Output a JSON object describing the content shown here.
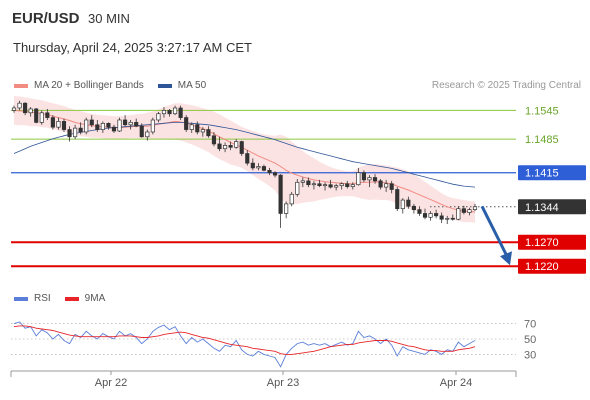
{
  "header": {
    "symbol": "EUR/USD",
    "timeframe": "30 MIN",
    "datetime": "Thursday, April 24, 2025 3:27:17 AM CET"
  },
  "legend": {
    "items": [
      {
        "label": "MA 20 + Bollinger Bands",
        "color": "#f28b82"
      },
      {
        "label": "MA 50",
        "color": "#2e5597"
      }
    ]
  },
  "credit": "Research © 2025 Trading Central",
  "rsi_legend": {
    "items": [
      {
        "label": "RSI",
        "color": "#5b7fd8"
      },
      {
        "label": "9MA",
        "color": "#e8262a"
      }
    ]
  },
  "chart_data": {
    "type": "candlestick",
    "x_tick_labels": [
      "Apr 22",
      "Apr 23",
      "Apr 24"
    ],
    "ylim": [
      1.1185,
      1.1575
    ],
    "levels": [
      {
        "label": "1.1545",
        "value": 1.1545,
        "style": "resistance",
        "color": "#8cc63f"
      },
      {
        "label": "1.1485",
        "value": 1.1485,
        "style": "resistance",
        "color": "#8cc63f"
      },
      {
        "label": "1.1415",
        "value": 1.1415,
        "style": "pivot",
        "color": "#2f5fd6"
      },
      {
        "label": "1.1344",
        "value": 1.1344,
        "style": "last",
        "color": "#333333"
      },
      {
        "label": "1.1270",
        "value": 1.127,
        "style": "support",
        "color": "#e00000"
      },
      {
        "label": "1.1220",
        "value": 1.122,
        "style": "support",
        "color": "#e00000"
      }
    ],
    "forecast_arrow": {
      "from": 1.1345,
      "to": 1.1222,
      "color": "#2b5ea8"
    },
    "candles": [
      [
        1.1545,
        1.1555,
        1.154,
        1.155
      ],
      [
        1.155,
        1.1565,
        1.1545,
        1.156
      ],
      [
        1.156,
        1.1562,
        1.1535,
        1.154
      ],
      [
        1.154,
        1.1552,
        1.1532,
        1.1548
      ],
      [
        1.1548,
        1.155,
        1.1518,
        1.152
      ],
      [
        1.152,
        1.1545,
        1.1515,
        1.154
      ],
      [
        1.154,
        1.1548,
        1.1525,
        1.153
      ],
      [
        1.153,
        1.1535,
        1.1505,
        1.151
      ],
      [
        1.151,
        1.153,
        1.1505,
        1.1522
      ],
      [
        1.1522,
        1.1528,
        1.15,
        1.1505
      ],
      [
        1.1505,
        1.1512,
        1.148,
        1.149
      ],
      [
        1.149,
        1.1515,
        1.1485,
        1.1508
      ],
      [
        1.1508,
        1.152,
        1.1495,
        1.15
      ],
      [
        1.15,
        1.153,
        1.1495,
        1.1525
      ],
      [
        1.1525,
        1.1535,
        1.151,
        1.1515
      ],
      [
        1.1515,
        1.1525,
        1.15,
        1.1505
      ],
      [
        1.1505,
        1.1522,
        1.1498,
        1.1518
      ],
      [
        1.1518,
        1.152,
        1.1505,
        1.151
      ],
      [
        1.151,
        1.1515,
        1.1498,
        1.1502
      ],
      [
        1.1502,
        1.153,
        1.15,
        1.1525
      ],
      [
        1.1525,
        1.1535,
        1.1512,
        1.1515
      ],
      [
        1.1515,
        1.1525,
        1.1505,
        1.152
      ],
      [
        1.152,
        1.1528,
        1.151,
        1.1512
      ],
      [
        1.1512,
        1.1518,
        1.1488,
        1.149
      ],
      [
        1.149,
        1.1505,
        1.1482,
        1.15
      ],
      [
        1.15,
        1.153,
        1.1495,
        1.1525
      ],
      [
        1.1525,
        1.1542,
        1.152,
        1.1538
      ],
      [
        1.1538,
        1.1552,
        1.153,
        1.1545
      ],
      [
        1.1545,
        1.1548,
        1.1532,
        1.1538
      ],
      [
        1.1538,
        1.1555,
        1.1535,
        1.155
      ],
      [
        1.155,
        1.1555,
        1.1525,
        1.153
      ],
      [
        1.153,
        1.1535,
        1.15,
        1.1505
      ],
      [
        1.1505,
        1.152,
        1.1498,
        1.1515
      ],
      [
        1.1515,
        1.1522,
        1.1495,
        1.15
      ],
      [
        1.15,
        1.151,
        1.149,
        1.1505
      ],
      [
        1.1505,
        1.1512,
        1.1488,
        1.1492
      ],
      [
        1.1492,
        1.15,
        1.147,
        1.1475
      ],
      [
        1.1475,
        1.149,
        1.146,
        1.1465
      ],
      [
        1.1465,
        1.1478,
        1.1458,
        1.1472
      ],
      [
        1.1472,
        1.148,
        1.1462,
        1.1468
      ],
      [
        1.1468,
        1.1485,
        1.1465,
        1.148
      ],
      [
        1.148,
        1.1482,
        1.145,
        1.1455
      ],
      [
        1.1455,
        1.1462,
        1.143,
        1.1435
      ],
      [
        1.1435,
        1.1445,
        1.142,
        1.1425
      ],
      [
        1.1425,
        1.1435,
        1.142,
        1.1428
      ],
      [
        1.1428,
        1.1432,
        1.1418,
        1.142
      ],
      [
        1.142,
        1.1425,
        1.141,
        1.1415
      ],
      [
        1.1415,
        1.1418,
        1.1405,
        1.141
      ],
      [
        1.141,
        1.1412,
        1.13,
        1.133
      ],
      [
        1.133,
        1.1355,
        1.132,
        1.135
      ],
      [
        1.135,
        1.1375,
        1.1345,
        1.137
      ],
      [
        1.137,
        1.1402,
        1.1365,
        1.1395
      ],
      [
        1.1395,
        1.1405,
        1.1385,
        1.1398
      ],
      [
        1.1398,
        1.1405,
        1.1385,
        1.139
      ],
      [
        1.139,
        1.1398,
        1.138,
        1.1392
      ],
      [
        1.1392,
        1.14,
        1.1385,
        1.1388
      ],
      [
        1.1388,
        1.1395,
        1.1378,
        1.139
      ],
      [
        1.139,
        1.14,
        1.1382,
        1.1385
      ],
      [
        1.1385,
        1.1392,
        1.1378,
        1.1388
      ],
      [
        1.1388,
        1.1395,
        1.138,
        1.1392
      ],
      [
        1.1392,
        1.1398,
        1.1382,
        1.1386
      ],
      [
        1.1386,
        1.1395,
        1.138,
        1.139
      ],
      [
        1.139,
        1.1425,
        1.1388,
        1.1415
      ],
      [
        1.1415,
        1.142,
        1.1395,
        1.14
      ],
      [
        1.14,
        1.141,
        1.1385,
        1.1405
      ],
      [
        1.1405,
        1.1412,
        1.1392,
        1.1398
      ],
      [
        1.1398,
        1.1402,
        1.138,
        1.1385
      ],
      [
        1.1385,
        1.14,
        1.1375,
        1.1392
      ],
      [
        1.1392,
        1.1398,
        1.1372,
        1.138
      ],
      [
        1.138,
        1.1385,
        1.1335,
        1.134
      ],
      [
        1.134,
        1.1362,
        1.133,
        1.1358
      ],
      [
        1.1358,
        1.1365,
        1.134,
        1.1345
      ],
      [
        1.1345,
        1.135,
        1.133,
        1.1338
      ],
      [
        1.1338,
        1.1345,
        1.1325,
        1.133
      ],
      [
        1.133,
        1.134,
        1.1318,
        1.1322
      ],
      [
        1.1322,
        1.1335,
        1.1315,
        1.133
      ],
      [
        1.133,
        1.1338,
        1.132,
        1.1325
      ],
      [
        1.1325,
        1.1332,
        1.131,
        1.1318
      ],
      [
        1.1318,
        1.1325,
        1.1308,
        1.132
      ],
      [
        1.132,
        1.1328,
        1.1315,
        1.1318
      ],
      [
        1.1318,
        1.1345,
        1.1316,
        1.134
      ],
      [
        1.134,
        1.1346,
        1.1328,
        1.1332
      ],
      [
        1.1332,
        1.1342,
        1.1326,
        1.1338
      ],
      [
        1.1338,
        1.135,
        1.1335,
        1.1344
      ]
    ],
    "ma20": [
      1.1545,
      1.1544,
      1.1543,
      1.1541,
      1.154,
      1.1538,
      1.1536,
      1.1533,
      1.153,
      1.1527,
      1.1524,
      1.152,
      1.1517,
      1.1515,
      1.1513,
      1.1512,
      1.1511,
      1.151,
      1.1509,
      1.1509,
      1.151,
      1.1511,
      1.1512,
      1.1512,
      1.1512,
      1.1514,
      1.1516,
      1.1518,
      1.152,
      1.1522,
      1.1521,
      1.1518,
      1.1515,
      1.1511,
      1.1507,
      1.1502,
      1.1496,
      1.149,
      1.1484,
      1.1478,
      1.1473,
      1.1468,
      1.1462,
      1.1456,
      1.145,
      1.1445,
      1.144,
      1.1435,
      1.1428,
      1.142,
      1.1414,
      1.141,
      1.1406,
      1.1403,
      1.14,
      1.1398,
      1.1396,
      1.1395,
      1.1394,
      1.1393,
      1.1392,
      1.1392,
      1.1394,
      1.1395,
      1.1395,
      1.1396,
      1.1395,
      1.1394,
      1.1392,
      1.1387,
      1.1383,
      1.1379,
      1.1374,
      1.1369,
      1.1364,
      1.1359,
      1.1354,
      1.1349,
      1.1344,
      1.134,
      1.1337,
      1.1335,
      1.1334,
      1.1333
    ],
    "ma50": [
      1.1455,
      1.146,
      1.1465,
      1.147,
      1.1474,
      1.1478,
      1.1482,
      1.1486,
      1.1489,
      1.1492,
      1.1495,
      1.1497,
      1.1499,
      1.1501,
      1.1503,
      1.1505,
      1.1507,
      1.1508,
      1.1509,
      1.151,
      1.1511,
      1.1512,
      1.1513,
      1.1514,
      1.1515,
      1.1516,
      1.1517,
      1.1518,
      1.1519,
      1.152,
      1.152,
      1.1519,
      1.1518,
      1.1517,
      1.1516,
      1.1515,
      1.1513,
      1.1511,
      1.1509,
      1.1507,
      1.1505,
      1.1502,
      1.1499,
      1.1496,
      1.1493,
      1.149,
      1.1487,
      1.1484,
      1.148,
      1.1476,
      1.1472,
      1.1468,
      1.1465,
      1.1462,
      1.1459,
      1.1456,
      1.1453,
      1.145,
      1.1447,
      1.1444,
      1.1441,
      1.1438,
      1.1436,
      1.1434,
      1.1432,
      1.143,
      1.1428,
      1.1426,
      1.1424,
      1.1421,
      1.1418,
      1.1415,
      1.1412,
      1.1409,
      1.1406,
      1.1403,
      1.14,
      1.1397,
      1.1394,
      1.1391,
      1.1389,
      1.1387,
      1.1386,
      1.1385
    ],
    "bb_upper": [
      1.1575,
      1.1574,
      1.1572,
      1.157,
      1.1568,
      1.1566,
      1.1563,
      1.156,
      1.1557,
      1.1554,
      1.155,
      1.1546,
      1.1543,
      1.154,
      1.1538,
      1.1536,
      1.1535,
      1.1534,
      1.1533,
      1.1533,
      1.1534,
      1.1535,
      1.1537,
      1.1538,
      1.154,
      1.1543,
      1.1547,
      1.1552,
      1.1556,
      1.156,
      1.156,
      1.1558,
      1.1556,
      1.1553,
      1.155,
      1.1546,
      1.1542,
      1.1537,
      1.153,
      1.1524,
      1.1517,
      1.1511,
      1.1506,
      1.1502,
      1.1498,
      1.1495,
      1.1493,
      1.1492,
      1.1494,
      1.149,
      1.148,
      1.147,
      1.146,
      1.1452,
      1.1445,
      1.1438,
      1.1432,
      1.1427,
      1.1423,
      1.142,
      1.1418,
      1.1418,
      1.1425,
      1.143,
      1.1432,
      1.1433,
      1.1432,
      1.143,
      1.1428,
      1.1426,
      1.1422,
      1.1418,
      1.1412,
      1.1404,
      1.1396,
      1.1388,
      1.138,
      1.1372,
      1.1366,
      1.1362,
      1.136,
      1.1358,
      1.1356,
      1.1355
    ],
    "bb_lower": [
      1.1515,
      1.1514,
      1.1514,
      1.1512,
      1.1512,
      1.151,
      1.1509,
      1.1506,
      1.1503,
      1.15,
      1.1498,
      1.1494,
      1.1491,
      1.149,
      1.1488,
      1.1488,
      1.1487,
      1.1486,
      1.1485,
      1.1485,
      1.1486,
      1.1487,
      1.1487,
      1.1486,
      1.1484,
      1.1485,
      1.1485,
      1.1484,
      1.1484,
      1.1484,
      1.1482,
      1.1478,
      1.1474,
      1.1469,
      1.1464,
      1.1458,
      1.145,
      1.1443,
      1.1438,
      1.1432,
      1.1429,
      1.1425,
      1.1418,
      1.141,
      1.1402,
      1.1395,
      1.1387,
      1.1378,
      1.1362,
      1.135,
      1.1348,
      1.135,
      1.1352,
      1.1354,
      1.1355,
      1.1358,
      1.136,
      1.1363,
      1.1365,
      1.1366,
      1.1366,
      1.1366,
      1.1363,
      1.136,
      1.1358,
      1.1359,
      1.1358,
      1.1358,
      1.1356,
      1.1348,
      1.1344,
      1.134,
      1.1336,
      1.1334,
      1.1332,
      1.133,
      1.1328,
      1.1326,
      1.1322,
      1.1318,
      1.1314,
      1.1312,
      1.1312,
      1.1311
    ],
    "rsi": {
      "ylim": [
        15,
        85
      ],
      "tick_labels": [
        "70",
        "50",
        "30"
      ],
      "tick_values": [
        70,
        50,
        30
      ],
      "rsi": [
        70,
        72,
        64,
        66,
        54,
        62,
        58,
        50,
        56,
        48,
        44,
        56,
        52,
        60,
        54,
        50,
        57,
        53,
        50,
        60,
        54,
        57,
        52,
        44,
        50,
        60,
        65,
        68,
        62,
        66,
        54,
        44,
        52,
        46,
        50,
        44,
        38,
        34,
        42,
        40,
        48,
        36,
        30,
        28,
        34,
        30,
        28,
        26,
        14,
        30,
        38,
        44,
        46,
        42,
        44,
        42,
        44,
        40,
        43,
        46,
        42,
        44,
        60,
        52,
        54,
        50,
        44,
        50,
        42,
        28,
        40,
        36,
        34,
        32,
        30,
        36,
        34,
        30,
        36,
        34,
        46,
        40,
        44,
        48
      ],
      "ma9": [
        66,
        67,
        67,
        66,
        64,
        63,
        62,
        61,
        59,
        57,
        55,
        54,
        53,
        53,
        53,
        53,
        53,
        53,
        53,
        54,
        54,
        54,
        53,
        52,
        52,
        53,
        54,
        56,
        57,
        58,
        59,
        58,
        56,
        54,
        52,
        51,
        49,
        47,
        45,
        43,
        42,
        41,
        40,
        38,
        37,
        36,
        35,
        34,
        31,
        30,
        30,
        31,
        32,
        33,
        34,
        36,
        38,
        40,
        41,
        42,
        43,
        43,
        45,
        46,
        47,
        48,
        48,
        48,
        47,
        45,
        43,
        41,
        40,
        38,
        36,
        35,
        35,
        34,
        34,
        34,
        36,
        37,
        38,
        40
      ]
    }
  }
}
